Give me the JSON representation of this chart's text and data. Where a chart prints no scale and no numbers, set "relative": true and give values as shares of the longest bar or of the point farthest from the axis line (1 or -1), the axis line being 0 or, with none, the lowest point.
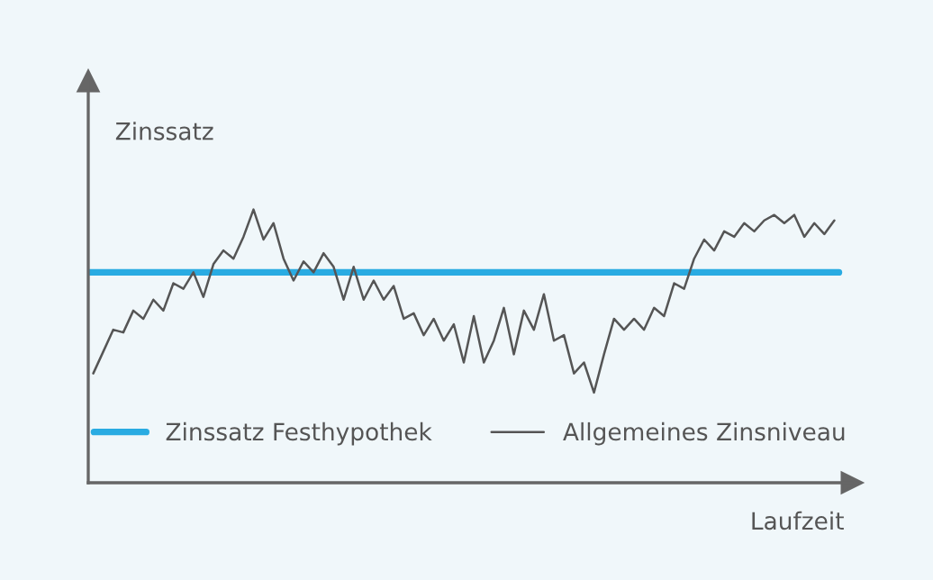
{
  "chart_data": {
    "type": "line",
    "relative": true,
    "ylabel": "Zinssatz",
    "xlabel": "Laufzeit",
    "legend": "bottom",
    "categories": [
      null,
      null,
      null,
      null,
      null,
      null,
      null,
      null,
      null,
      null,
      null,
      null,
      null,
      null,
      null,
      null,
      null,
      null,
      null,
      null,
      null,
      null,
      null,
      null,
      null,
      null,
      null,
      null,
      null,
      null,
      null,
      null,
      null,
      null,
      null,
      null,
      null,
      null,
      null,
      null,
      null,
      null,
      null,
      null,
      null,
      null,
      null,
      null,
      null,
      null,
      null,
      null,
      null,
      null,
      null,
      null,
      null,
      null,
      null,
      null,
      null,
      null,
      null,
      null,
      null,
      null,
      null,
      null,
      null,
      null,
      null,
      null,
      null,
      null,
      null
    ],
    "ref_lines": [
      {
        "axis": "y",
        "value": 0.77,
        "label": "Zinssatz Festhypothek",
        "color": "#29abe2"
      }
    ],
    "series": [
      {
        "name": "Allgemeines Zinsniveau",
        "color": "#555555",
        "values": [
          0.4,
          0.48,
          0.56,
          0.55,
          0.63,
          0.6,
          0.67,
          0.63,
          0.73,
          0.71,
          0.77,
          0.68,
          0.8,
          0.85,
          0.82,
          0.9,
          1.0,
          0.89,
          0.95,
          0.82,
          0.74,
          0.81,
          0.77,
          0.84,
          0.79,
          0.67,
          0.79,
          0.67,
          0.74,
          0.67,
          0.72,
          0.6,
          0.62,
          0.54,
          0.6,
          0.52,
          0.58,
          0.44,
          0.61,
          0.44,
          0.52,
          0.64,
          0.47,
          0.63,
          0.56,
          0.69,
          0.52,
          0.54,
          0.4,
          0.44,
          0.33,
          0.47,
          0.6,
          0.56,
          0.6,
          0.56,
          0.64,
          0.61,
          0.73,
          0.71,
          0.82,
          0.89,
          0.85,
          0.92,
          0.9,
          0.95,
          0.92,
          0.96,
          0.98,
          0.95,
          0.98,
          0.9,
          0.95,
          0.91,
          0.96
        ]
      }
    ]
  }
}
